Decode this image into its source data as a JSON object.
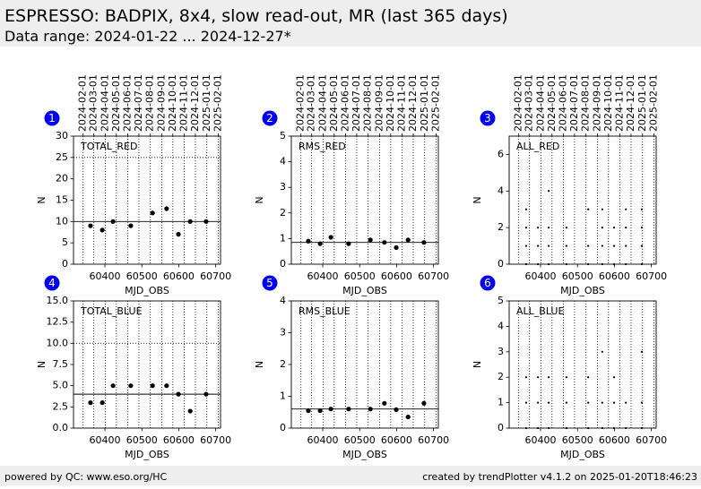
{
  "header": {
    "title": "ESPRESSO: BADPIX, 8x4, slow read-out, MR (last 365 days)",
    "subtitle": "Data range: 2024-01-22 ... 2024-12-27*"
  },
  "footer": {
    "left": "powered by QC: www.eso.org/HC",
    "right": "created by trendPlotter v4.1.2 on 2025-01-20T18:46:23"
  },
  "date_ticks": [
    {
      "value": 60341,
      "label": "2024-02-01"
    },
    {
      "value": 60370,
      "label": "2024-03-01"
    },
    {
      "value": 60401,
      "label": "2024-04-01"
    },
    {
      "value": 60431,
      "label": "2024-05-01"
    },
    {
      "value": 60462,
      "label": "2024-06-01"
    },
    {
      "value": 60492,
      "label": "2024-07-01"
    },
    {
      "value": 60523,
      "label": "2024-08-01"
    },
    {
      "value": 60554,
      "label": "2024-09-01"
    },
    {
      "value": 60584,
      "label": "2024-10-01"
    },
    {
      "value": 60615,
      "label": "2024-11-01"
    },
    {
      "value": 60645,
      "label": "2024-12-01"
    },
    {
      "value": 60676,
      "label": "2025-01-01"
    },
    {
      "value": 60707,
      "label": "2025-02-01"
    }
  ],
  "chart_data": [
    {
      "type": "scatter",
      "marker": "dot",
      "badge": "1",
      "label": "TOTAL_RED",
      "xlabel": "MJD_OBS",
      "ylabel": "N",
      "xlim": [
        60315,
        60713
      ],
      "xticks": [
        60400,
        60500,
        60600,
        60700
      ],
      "ylim": [
        0,
        30
      ],
      "yticks": [
        0,
        5,
        10,
        15,
        20,
        25,
        30
      ],
      "x": [
        60361,
        60393,
        60422,
        60470,
        60529,
        60567,
        60599,
        60631,
        60674
      ],
      "values": [
        9,
        8,
        10,
        9,
        12,
        13,
        7,
        10,
        10
      ],
      "color": "#000000",
      "hlines": [
        {
          "value": 10,
          "style": "solid"
        },
        {
          "value": 25,
          "style": "dotted"
        }
      ]
    },
    {
      "type": "scatter",
      "marker": "dot",
      "badge": "2",
      "label": "RMS_RED",
      "xlabel": "MJD_OBS",
      "ylabel": "N",
      "xlim": [
        60315,
        60713
      ],
      "xticks": [
        60400,
        60500,
        60600,
        60700
      ],
      "ylim": [
        0,
        5
      ],
      "yticks": [
        0,
        1,
        2,
        3,
        4,
        5
      ],
      "x": [
        60361,
        60393,
        60422,
        60470,
        60529,
        60567,
        60599,
        60631,
        60674
      ],
      "values": [
        0.9,
        0.8,
        1.05,
        0.8,
        0.95,
        0.85,
        0.65,
        0.95,
        0.85
      ],
      "color": "#000000",
      "hlines": [
        {
          "value": 0.85,
          "style": "solid"
        }
      ]
    },
    {
      "type": "scatter",
      "marker": "pixel",
      "badge": "3",
      "label": "ALL_RED",
      "xlabel": "MJD_OBS",
      "ylabel": "N",
      "xlim": [
        60315,
        60713
      ],
      "xticks": [
        60400,
        60500,
        60600,
        60700
      ],
      "ylim": [
        0,
        7
      ],
      "yticks": [
        0,
        2,
        4,
        6
      ],
      "x": [
        60361,
        60361,
        60361,
        60361,
        60393,
        60393,
        60393,
        60422,
        60422,
        60422,
        60422,
        60470,
        60470,
        60470,
        60529,
        60529,
        60529,
        60567,
        60567,
        60567,
        60567,
        60599,
        60599,
        60599,
        60631,
        60631,
        60631,
        60631,
        60674,
        60674,
        60674,
        60674
      ],
      "values": [
        0,
        1,
        2,
        3,
        0,
        1,
        2,
        0,
        1,
        2,
        4,
        0,
        1,
        2,
        0,
        1,
        3,
        0,
        1,
        2,
        3,
        0,
        1,
        2,
        0,
        1,
        2,
        3,
        0,
        1,
        2,
        3
      ],
      "color": "#000000",
      "hlines": []
    },
    {
      "type": "scatter",
      "marker": "dot",
      "badge": "4",
      "label": "TOTAL_BLUE",
      "xlabel": "MJD_OBS",
      "ylabel": "N",
      "xlim": [
        60315,
        60713
      ],
      "xticks": [
        60400,
        60500,
        60600,
        60700
      ],
      "ylim": [
        0,
        15
      ],
      "yticks": [
        {
          "value": 0,
          "label": "0.0"
        },
        {
          "value": 2.5,
          "label": "2.5"
        },
        {
          "value": 5,
          "label": "5.0"
        },
        {
          "value": 7.5,
          "label": "7.5"
        },
        {
          "value": 10,
          "label": "10.0"
        },
        {
          "value": 12.5,
          "label": "12.5"
        },
        {
          "value": 15,
          "label": "15.0"
        }
      ],
      "x": [
        60361,
        60393,
        60422,
        60470,
        60529,
        60567,
        60599,
        60631,
        60674
      ],
      "values": [
        3,
        3,
        5,
        5,
        5,
        5,
        4,
        2,
        4
      ],
      "color": "#000000",
      "hlines": [
        {
          "value": 4,
          "style": "solid"
        },
        {
          "value": 10,
          "style": "dotted"
        }
      ]
    },
    {
      "type": "scatter",
      "marker": "dot",
      "badge": "5",
      "label": "RMS_BLUE",
      "xlabel": "MJD_OBS",
      "ylabel": "N",
      "xlim": [
        60315,
        60713
      ],
      "xticks": [
        60400,
        60500,
        60600,
        60700
      ],
      "ylim": [
        0,
        4
      ],
      "yticks": [
        0,
        1,
        2,
        3,
        4
      ],
      "x": [
        60361,
        60393,
        60422,
        60470,
        60529,
        60567,
        60599,
        60631,
        60674
      ],
      "values": [
        0.55,
        0.55,
        0.6,
        0.6,
        0.6,
        0.78,
        0.58,
        0.35,
        0.78
      ],
      "color": "#000000",
      "hlines": [
        {
          "value": 0.6,
          "style": "solid"
        }
      ]
    },
    {
      "type": "scatter",
      "marker": "pixel",
      "badge": "6",
      "label": "ALL_BLUE",
      "xlabel": "MJD_OBS",
      "ylabel": "N",
      "xlim": [
        60315,
        60713
      ],
      "xticks": [
        60400,
        60500,
        60600,
        60700
      ],
      "ylim": [
        0,
        5
      ],
      "yticks": [
        0,
        1,
        2,
        3,
        4,
        5
      ],
      "x": [
        60361,
        60361,
        60361,
        60393,
        60393,
        60393,
        60422,
        60422,
        60422,
        60470,
        60470,
        60470,
        60529,
        60529,
        60529,
        60567,
        60567,
        60567,
        60599,
        60599,
        60599,
        60631,
        60631,
        60674,
        60674,
        60674
      ],
      "values": [
        0,
        1,
        2,
        0,
        1,
        2,
        0,
        1,
        2,
        0,
        1,
        2,
        0,
        1,
        2,
        0,
        1,
        3,
        0,
        1,
        2,
        0,
        1,
        0,
        1,
        3
      ],
      "color": "#000000",
      "hlines": []
    }
  ]
}
